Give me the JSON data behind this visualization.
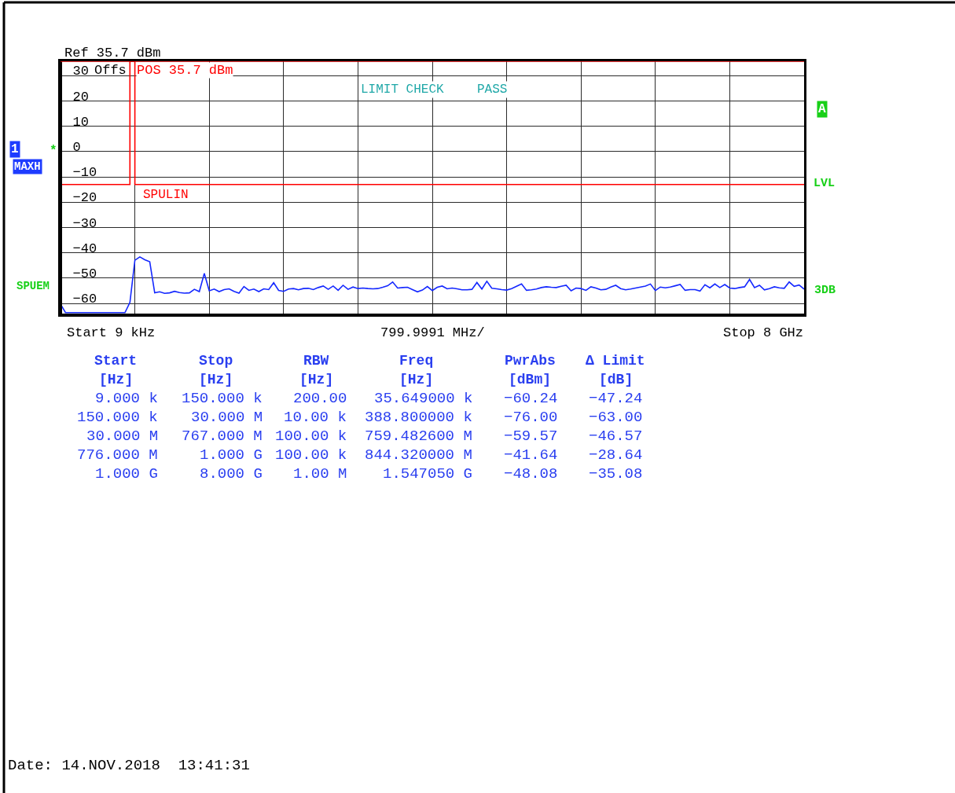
{
  "chart_data": {
    "type": "line",
    "xlabel": "799.9991 MHz/",
    "categories": [
      null,
      null,
      null,
      null,
      null,
      null,
      null,
      null,
      null,
      null,
      null,
      null,
      null,
      null,
      null,
      null,
      null,
      null,
      null,
      null,
      null,
      null,
      null,
      null,
      null,
      null,
      null,
      null,
      null,
      null,
      null,
      null,
      null,
      null,
      null,
      null,
      null,
      null,
      null,
      null,
      null,
      null,
      null,
      null,
      null,
      null,
      null,
      null,
      null,
      null,
      null,
      null,
      null,
      null,
      null,
      null,
      null,
      null,
      null,
      null,
      null,
      null,
      null,
      null,
      null,
      null,
      null,
      null,
      null,
      null,
      null,
      null,
      null,
      null,
      null,
      null,
      null,
      null,
      null,
      null,
      null,
      null,
      null,
      null,
      null,
      null,
      null,
      null,
      null,
      null,
      null,
      null,
      null,
      null,
      null,
      null,
      null,
      null,
      null,
      null,
      null,
      null,
      null,
      null,
      null,
      null,
      null,
      null,
      null,
      null,
      null,
      null,
      null,
      null,
      null,
      null,
      null,
      null,
      null,
      null,
      null,
      null,
      null,
      null,
      null,
      null,
      null,
      null,
      null,
      null,
      null,
      null,
      null,
      null,
      null,
      null,
      null,
      null,
      null,
      null,
      null,
      null,
      null,
      null,
      null,
      null,
      null,
      null,
      null,
      null,
      null
    ],
    "ylim": [
      -64.3,
      35.7
    ],
    "yticks": [
      30,
      20,
      10,
      0,
      -10,
      -20,
      -30,
      -40,
      -50,
      -60
    ],
    "tick_labels": "y",
    "grid": true,
    "legend": false,
    "series": [
      {
        "color": "#1428ff",
        "values": [
          -60.2,
          -63.6,
          -63.6,
          -63.6,
          -63.6,
          -63.6,
          -63.6,
          -63.6,
          -63.6,
          -63.6,
          -63.6,
          -63.6,
          -63.6,
          -63.6,
          -59.6,
          -42.9,
          -41.6,
          -42.7,
          -43.5,
          -55.8,
          -55.4,
          -56.0,
          -55.8,
          -55.2,
          -55.7,
          -55.9,
          -55.8,
          -54.4,
          -55.3,
          -48.1,
          -55.0,
          -54.3,
          -55.3,
          -54.5,
          -54.2,
          -55.2,
          -55.9,
          -53.3,
          -54.8,
          -54.3,
          -55.3,
          -54.2,
          -54.5,
          -51.8,
          -54.8,
          -55.2,
          -54.3,
          -54.1,
          -54.6,
          -54.1,
          -54.0,
          -54.5,
          -53.7,
          -53.1,
          -54.4,
          -53.1,
          -54.8,
          -52.8,
          -54.4,
          -53.5,
          -54.1,
          -53.9,
          -54.1,
          -54.2,
          -54.1,
          -53.6,
          -53.0,
          -51.5,
          -53.9,
          -53.7,
          -53.6,
          -54.5,
          -55.4,
          -54.7,
          -53.3,
          -54.9,
          -53.6,
          -53.1,
          -54.2,
          -53.9,
          -54.2,
          -54.6,
          -54.6,
          -54.4,
          -51.7,
          -54.3,
          -51.2,
          -54.0,
          -54.2,
          -54.5,
          -54.7,
          -54.1,
          -53.2,
          -52.3,
          -54.8,
          -54.6,
          -54.3,
          -53.7,
          -53.4,
          -53.6,
          -53.7,
          -53.2,
          -52.8,
          -55.0,
          -53.9,
          -54.1,
          -54.8,
          -53.4,
          -53.9,
          -54.6,
          -54.4,
          -53.5,
          -52.8,
          -54.1,
          -54.6,
          -54.3,
          -53.9,
          -53.5,
          -53.1,
          -52.3,
          -54.9,
          -53.5,
          -53.8,
          -53.5,
          -53.0,
          -52.5,
          -54.8,
          -54.5,
          -54.5,
          -55.1,
          -52.6,
          -53.8,
          -52.3,
          -53.7,
          -52.5,
          -53.9,
          -54.1,
          -53.7,
          -53.4,
          -50.5,
          -53.7,
          -52.8,
          -54.6,
          -54.1,
          -53.4,
          -53.8,
          -54.0,
          -51.5,
          -53.2,
          -52.7,
          -54.3
        ]
      },
      {
        "name": "SPULIN",
        "type": "step",
        "color": "#ff0000",
        "values": [
          -13,
          -13,
          -13,
          -13,
          -13,
          -13,
          -13,
          -13,
          -13,
          -13,
          -13,
          -13,
          -13,
          -13,
          35.7,
          -13,
          -13,
          -13,
          -13,
          -13,
          -13,
          -13,
          -13,
          -13,
          -13,
          -13,
          -13,
          -13,
          -13,
          -13,
          -13,
          -13,
          -13,
          -13,
          -13,
          -13,
          -13,
          -13,
          -13,
          -13,
          -13,
          -13,
          -13,
          -13,
          -13,
          -13,
          -13,
          -13,
          -13,
          -13,
          -13,
          -13,
          -13,
          -13,
          -13,
          -13,
          -13,
          -13,
          -13,
          -13,
          -13,
          -13,
          -13,
          -13,
          -13,
          -13,
          -13,
          -13,
          -13,
          -13,
          -13,
          -13,
          -13,
          -13,
          -13,
          -13,
          -13,
          -13,
          -13,
          -13,
          -13,
          -13,
          -13,
          -13,
          -13,
          -13,
          -13,
          -13,
          -13,
          -13,
          -13,
          -13,
          -13,
          -13,
          -13,
          -13,
          -13,
          -13,
          -13,
          -13,
          -13,
          -13,
          -13,
          -13,
          -13,
          -13,
          -13,
          -13,
          -13,
          -13,
          -13,
          -13,
          -13,
          -13,
          -13,
          -13,
          -13,
          -13,
          -13,
          -13,
          -13,
          -13,
          -13,
          -13,
          -13,
          -13,
          -13,
          -13,
          -13,
          -13,
          -13,
          -13,
          -13,
          -13,
          -13,
          -13,
          -13,
          -13,
          -13,
          -13,
          -13,
          -13,
          -13,
          -13,
          -13,
          -13,
          -13,
          -13,
          -13,
          -13,
          -13
        ]
      }
    ],
    "ref_lines": [
      {
        "axis": "y",
        "value": 35.7,
        "label": "POS 35.7 dBm",
        "color": "#ff0000"
      }
    ],
    "annotations": [
      "Ref 35.7 dBm",
      "Offs",
      "LIMIT CHECK",
      "PASS",
      "1",
      "MAXH",
      "*",
      "SPUEM",
      "A",
      "LVL",
      "3DB",
      "Start 9 kHz",
      "Stop 8 GHz",
      "Date: 14.NOV.2018  13:41:31",
      "Start",
      "Stop",
      "RBW",
      "Freq",
      "PwrAbs",
      "Δ Limit",
      "[Hz]",
      "[Hz]",
      "[Hz]",
      "[Hz]",
      "[dBm]",
      "[dB]",
      "9.000 k",
      "150.000 k",
      "200.00",
      "35.649000 k",
      "−60.24",
      "−47.24",
      "150.000 k",
      "30.000 M",
      "10.00 k",
      "388.800000 k",
      "−76.00",
      "−63.00",
      "30.000 M",
      "767.000 M",
      "100.00 k",
      "759.482600 M",
      "−59.57",
      "−46.57",
      "776.000 M",
      "1.000 G",
      "100.00 k",
      "844.320000 M",
      "−41.64",
      "−28.64",
      "1.000 G",
      "8.000 G",
      "1.00 M",
      "1.547050 G",
      "−48.08",
      "−35.08"
    ]
  }
}
